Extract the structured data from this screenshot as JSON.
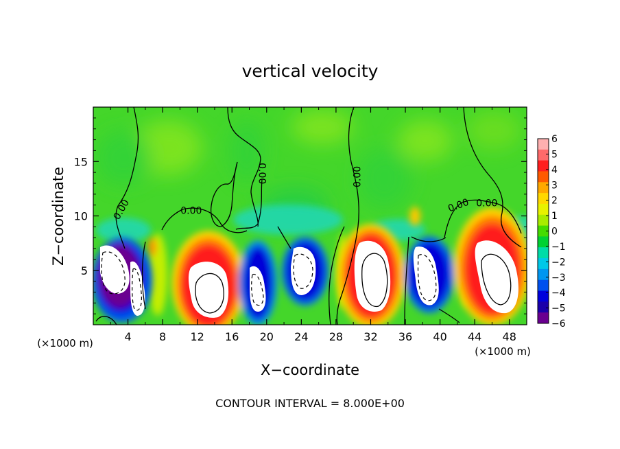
{
  "chart_data": {
    "type": "heatmap",
    "title": "vertical velocity",
    "xlabel": "X−coordinate",
    "ylabel": "Z−coordinate",
    "x_unit_left": "(×1000 m)",
    "x_unit_right": "(×1000 m)",
    "footer": "CONTOUR INTERVAL = 8.000E+00",
    "xlim": [
      0,
      50
    ],
    "ylim": [
      0,
      20
    ],
    "x_ticks": [
      4,
      8,
      12,
      16,
      20,
      24,
      28,
      32,
      36,
      40,
      44,
      48
    ],
    "x_tick_labels": [
      "4",
      "8",
      "12",
      "16",
      "20",
      "24",
      "28",
      "32",
      "36",
      "40",
      "44",
      "48"
    ],
    "y_ticks": [
      5,
      10,
      15
    ],
    "y_tick_labels": [
      "5",
      "10",
      "15"
    ],
    "contour_labels": [
      {
        "text": "0.00",
        "x": 3.2,
        "z": 10.6,
        "angle": -60
      },
      {
        "text": "0.00",
        "x": 11.3,
        "z": 10.5,
        "angle": 0
      },
      {
        "text": "0.00",
        "x": 19.5,
        "z": 13.9,
        "angle": 90
      },
      {
        "text": "0.00",
        "x": 30.4,
        "z": 13.6,
        "angle": -90
      },
      {
        "text": "0.00",
        "x": 42.1,
        "z": 11.0,
        "angle": -20
      },
      {
        "text": "0.00",
        "x": 45.4,
        "z": 11.2,
        "angle": 0
      }
    ],
    "colorbar": {
      "ticks": [
        6,
        5,
        4,
        3,
        2,
        1,
        0,
        -1,
        -2,
        -3,
        -4,
        -5,
        -6
      ],
      "tick_labels": [
        "6",
        "5",
        "4",
        "3",
        "2",
        "1",
        "0",
        "−1",
        "−2",
        "−3",
        "−4",
        "−5",
        "−6"
      ],
      "colors": [
        "#ffb0b0",
        "#ff6a6a",
        "#ff1e1e",
        "#ff5a00",
        "#ffa800",
        "#ffd800",
        "#e8f200",
        "#a8ec00",
        "#44dc00",
        "#00d232",
        "#00dca8",
        "#00c8e8",
        "#0096f0",
        "#0050ee",
        "#0000dc",
        "#1a00aa",
        "#6a0090"
      ]
    },
    "features": [
      {
        "kind": "downdraft",
        "x_range": [
          0.5,
          7.5
        ],
        "z_range": [
          0,
          8.2
        ]
      },
      {
        "kind": "updraft",
        "x_range": [
          9.0,
          17.0
        ],
        "z_range": [
          0,
          8.0
        ]
      },
      {
        "kind": "downdraft",
        "x_range": [
          16.5,
          20.5
        ],
        "z_range": [
          0,
          7.5
        ]
      },
      {
        "kind": "downdraft",
        "x_range": [
          21.5,
          27.0
        ],
        "z_range": [
          2.0,
          7.8
        ]
      },
      {
        "kind": "updraft",
        "x_range": [
          28.5,
          36.0
        ],
        "z_range": [
          0,
          8.6
        ]
      },
      {
        "kind": "downdraft",
        "x_range": [
          36.2,
          41.8
        ],
        "z_range": [
          1.0,
          7.8
        ]
      },
      {
        "kind": "updraft",
        "x_range": [
          42.0,
          50.0
        ],
        "z_range": [
          0,
          10.0
        ]
      }
    ]
  }
}
